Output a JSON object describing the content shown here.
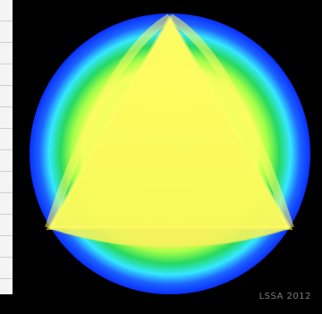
{
  "image": {
    "credit_text": "LSSA 2012",
    "colors": {
      "background": "#000000",
      "outer_ring": "#0b2fff",
      "cyan_ring": "#35e8ff",
      "green_ring": "#22d85e",
      "inner_green": "#9fff45",
      "triangle_fill": "#fbff60"
    }
  }
}
